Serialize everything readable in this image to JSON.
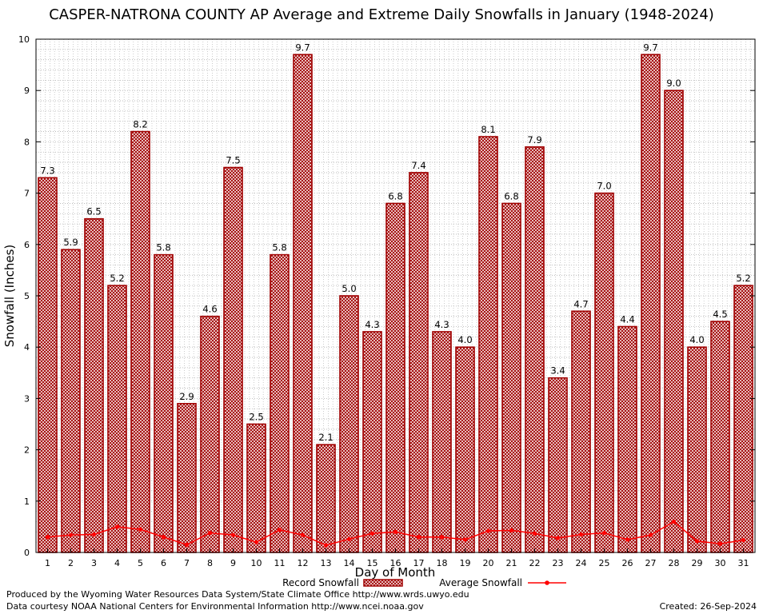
{
  "chart_data": {
    "type": "bar",
    "title": "CASPER-NATRONA COUNTY AP Average and Extreme Daily Snowfalls in January (1948-2024)",
    "xlabel": "Day of Month",
    "ylabel": "Snowfall (Inches)",
    "ylim": [
      0,
      10
    ],
    "yticks": [
      "0",
      "1",
      "2",
      "3",
      "4",
      "5",
      "6",
      "7",
      "8",
      "9",
      "10"
    ],
    "grid": true,
    "categories": [
      "1",
      "2",
      "3",
      "4",
      "5",
      "6",
      "7",
      "8",
      "9",
      "10",
      "11",
      "12",
      "13",
      "14",
      "15",
      "16",
      "17",
      "18",
      "19",
      "20",
      "21",
      "22",
      "23",
      "24",
      "25",
      "26",
      "27",
      "28",
      "29",
      "30",
      "31"
    ],
    "series": [
      {
        "name": "Record Snowfall",
        "type": "bar",
        "color": "#a00000",
        "values": [
          7.3,
          5.9,
          6.5,
          5.2,
          8.2,
          5.8,
          2.9,
          4.6,
          7.5,
          2.5,
          5.8,
          9.7,
          2.1,
          5.0,
          4.3,
          6.8,
          7.4,
          4.3,
          4.0,
          8.1,
          6.8,
          7.9,
          3.4,
          4.7,
          7.0,
          4.4,
          9.7,
          9.0,
          4.0,
          4.5,
          5.2
        ],
        "labels": [
          "7.3",
          "5.9",
          "6.5",
          "5.2",
          "8.2",
          "5.8",
          "2.9",
          "4.6",
          "7.5",
          "2.5",
          "5.8",
          "9.7",
          "2.1",
          "5.0",
          "4.3",
          "6.8",
          "7.4",
          "4.3",
          "4.0",
          "8.1",
          "6.8",
          "7.9",
          "3.4",
          "4.7",
          "7.0",
          "4.4",
          "9.7",
          "9.0",
          "4.0",
          "4.5",
          "5.2"
        ]
      },
      {
        "name": "Average Snowfall",
        "type": "line",
        "color": "#ff0000",
        "values": [
          0.3,
          0.34,
          0.35,
          0.5,
          0.45,
          0.3,
          0.15,
          0.38,
          0.34,
          0.2,
          0.44,
          0.34,
          0.14,
          0.26,
          0.37,
          0.4,
          0.3,
          0.3,
          0.25,
          0.42,
          0.43,
          0.37,
          0.28,
          0.35,
          0.38,
          0.25,
          0.34,
          0.6,
          0.22,
          0.17,
          0.24
        ]
      }
    ],
    "legend": "bottom-center"
  },
  "footer": {
    "produced": "Produced by the Wyoming Water Resources Data System/State Climate Office http://www.wrds.uwyo.edu",
    "courtesy": "Data courtesy NOAA National Centers for Environmental Information http://www.ncei.noaa.gov",
    "created": "Created:  26-Sep-2024"
  }
}
